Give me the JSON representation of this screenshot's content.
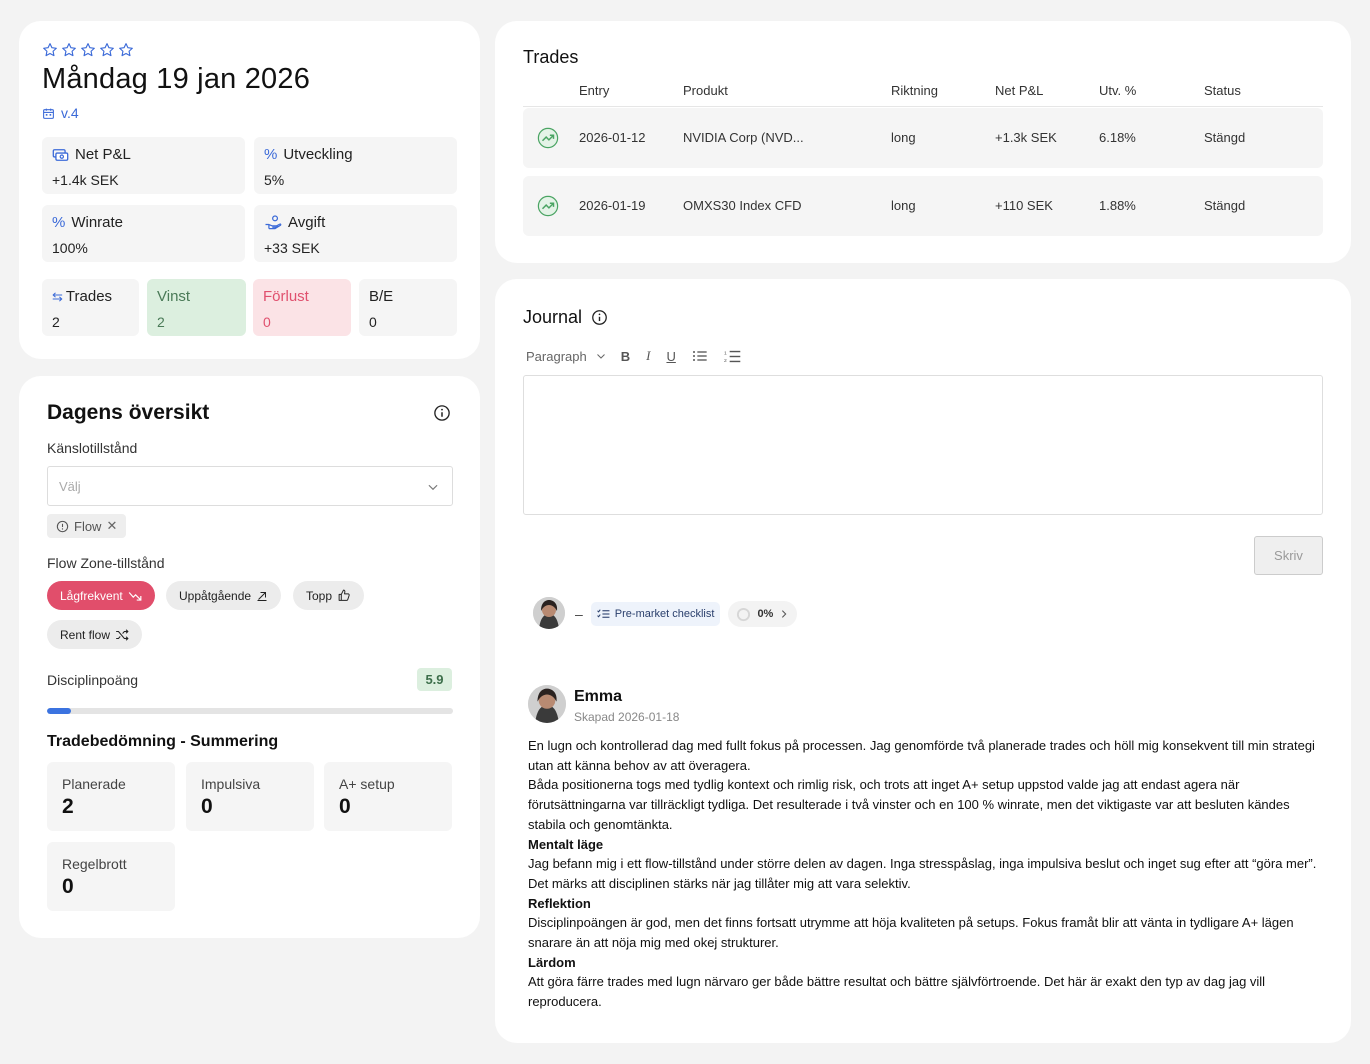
{
  "day": {
    "title": "Måndag 19 jan 2026",
    "version": "v.4",
    "rating": 0,
    "rating_max": 5
  },
  "stats": {
    "net_pnl": {
      "label": "Net P&L",
      "value": "+1.4k SEK"
    },
    "growth": {
      "label": "Utveckling",
      "value": "5%"
    },
    "winrate": {
      "label": "Winrate",
      "value": "100%"
    },
    "fee": {
      "label": "Avgift",
      "value": "+33 SEK"
    },
    "trades": {
      "label": "Trades",
      "value": "2"
    },
    "wins": {
      "label": "Vinst",
      "value": "2"
    },
    "losses": {
      "label": "Förlust",
      "value": "0"
    },
    "breakeven": {
      "label": "B/E",
      "value": "0"
    }
  },
  "overview": {
    "title": "Dagens översikt",
    "emotion_label": "Känslotillstånd",
    "emotion_placeholder": "Välj",
    "emotion_tag": "Flow",
    "flow_label": "Flow Zone-tillstånd",
    "flow_options": [
      {
        "label": "Lågfrekvent",
        "active": true
      },
      {
        "label": "Uppåtgående",
        "active": false
      },
      {
        "label": "Topp",
        "active": false
      },
      {
        "label": "Rent flow",
        "active": false
      }
    ],
    "discipline_label": "Disciplinpoäng",
    "discipline_score": "5.9",
    "discipline_progress": 0.06,
    "summary_title": "Tradebedömning - Summering",
    "summary": {
      "planned": {
        "label": "Planerade",
        "value": "2"
      },
      "impulsive": {
        "label": "Impulsiva",
        "value": "0"
      },
      "aplus": {
        "label": "A+ setup",
        "value": "0"
      },
      "rulebreaks": {
        "label": "Regelbrott",
        "value": "0"
      }
    }
  },
  "trades": {
    "title": "Trades",
    "columns": [
      "Entry",
      "Produkt",
      "Riktning",
      "Net P&L",
      "Utv. %",
      "Status"
    ],
    "rows": [
      {
        "entry": "2026-01-12",
        "product": "NVIDIA Corp (NVD...",
        "direction": "long",
        "pnl": "+1.3k SEK",
        "pct": "6.18%",
        "status": "Stängd"
      },
      {
        "entry": "2026-01-19",
        "product": "OMXS30 Index CFD",
        "direction": "long",
        "pnl": "+110 SEK",
        "pct": "1.88%",
        "status": "Stängd"
      }
    ]
  },
  "journal": {
    "title": "Journal",
    "paragraph_style": "Paragraph",
    "toolbar": {
      "bold": "B",
      "italic": "I",
      "underline": "U"
    },
    "write_button": "Skriv",
    "dash": "–",
    "checklist_label": "Pre-market checklist",
    "checklist_progress": "0%",
    "author": "Emma",
    "created": "Skapad 2026-01-18",
    "entry": {
      "p1": "En lugn och kontrollerad dag med fullt fokus på processen. Jag genomförde två planerade trades och höll mig konsekvent till min strategi utan att känna behov av att överagera.",
      "p2": "Båda positionerna togs med tydlig kontext och rimlig risk, och trots att inget A+ setup uppstod valde jag att endast agera när förutsättningarna var tillräckligt tydliga. Det resulterade i två vinster och en 100 % winrate, men det viktigaste var att besluten kändes stabila och genomtänkta.",
      "h_mental": "Mentalt läge",
      "p3": "Jag befann mig i ett flow-tillstånd under större delen av dagen. Inga stresspåslag, inga impulsiva beslut och inget sug efter att “göra mer”. Det märks att disciplinen stärks när jag tillåter mig att vara selektiv.",
      "h_reflection": "Reflektion",
      "p4": "Disciplinpoängen är god, men det finns fortsatt utrymme att höja kvaliteten på setups. Fokus framåt blir att vänta in tydligare A+ lägen snarare än att nöja mig med okej strukturer.",
      "h_lesson": "Lärdom",
      "p5": "Att göra färre trades med lugn närvaro ger både bättre resultat och bättre självförtroende. Det här är exakt den typ av dag jag vill reproducera."
    }
  },
  "colors": {
    "accent_blue": "#3b6ad8",
    "win_bg": "#dcefdf",
    "loss_bg": "#fbe3e6",
    "pill_active": "#e14e6b"
  }
}
